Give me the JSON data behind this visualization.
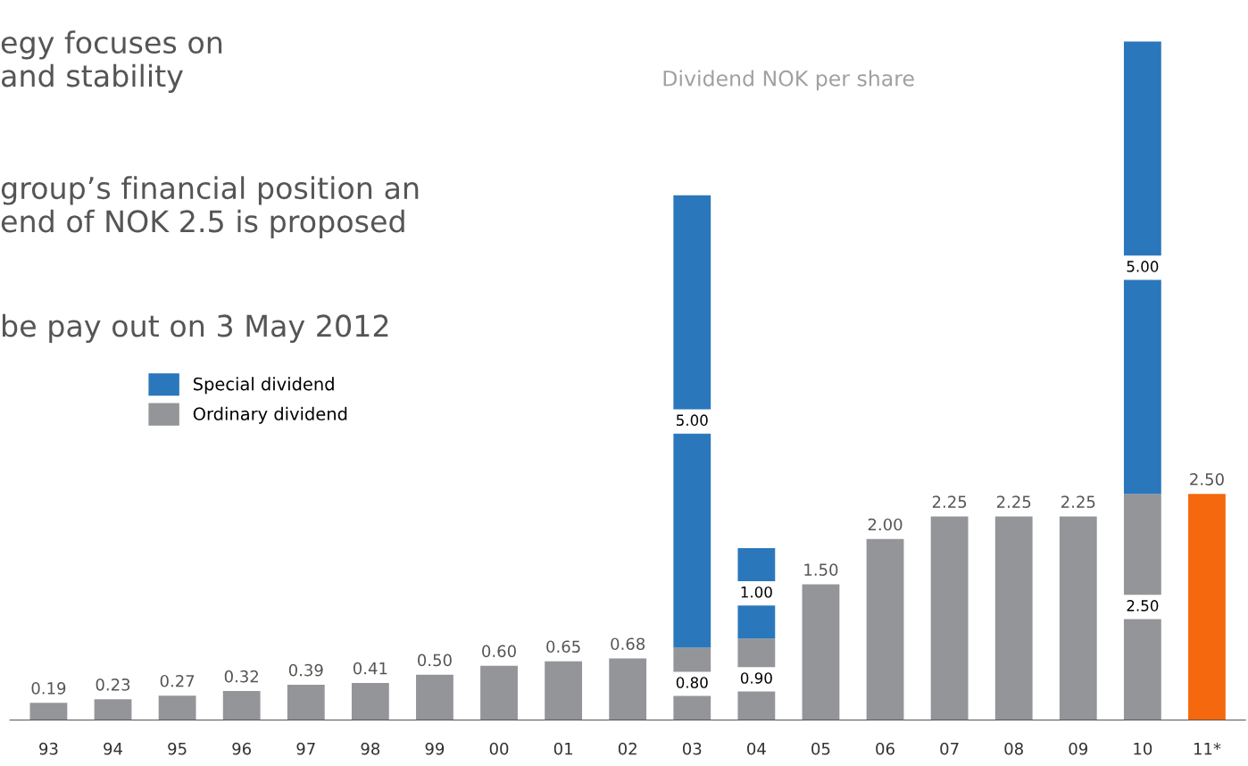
{
  "chart_data": {
    "type": "bar",
    "title": "Dividend NOK per share",
    "categories": [
      "93",
      "94",
      "95",
      "96",
      "97",
      "98",
      "99",
      "00",
      "01",
      "02",
      "03",
      "04",
      "05",
      "06",
      "07",
      "08",
      "09",
      "10",
      "11*"
    ],
    "stacked": true,
    "legend": "left",
    "grid": false,
    "series": [
      {
        "name": "Ordinary dividend",
        "color": "#939598",
        "colors": [
          "#939598",
          "#939598",
          "#939598",
          "#939598",
          "#939598",
          "#939598",
          "#939598",
          "#939598",
          "#939598",
          "#939598",
          "#939598",
          "#939598",
          "#939598",
          "#939598",
          "#939598",
          "#939598",
          "#939598",
          "#939598",
          "#f5680d"
        ],
        "values": [
          0.19,
          0.23,
          0.27,
          0.32,
          0.39,
          0.41,
          0.5,
          0.6,
          0.65,
          0.68,
          0.8,
          0.9,
          1.5,
          2.0,
          2.25,
          2.25,
          2.25,
          2.5,
          2.5
        ],
        "value_labels": [
          "0.19",
          "0.23",
          "0.27",
          "0.32",
          "0.39",
          "0.41",
          "0.50",
          "0.60",
          "0.65",
          "0.68",
          "0.80",
          "0.90",
          "1.50",
          "2.00",
          "2.25",
          "2.25",
          "2.25",
          "2.50",
          "2.50"
        ]
      },
      {
        "name": "Special dividend",
        "color": "#2b77bb",
        "values": [
          null,
          null,
          null,
          null,
          null,
          null,
          null,
          null,
          null,
          null,
          5.0,
          1.0,
          null,
          null,
          null,
          null,
          null,
          5.0,
          null
        ],
        "value_labels": [
          null,
          null,
          null,
          null,
          null,
          null,
          null,
          null,
          null,
          null,
          "5.00",
          "1.00",
          null,
          null,
          null,
          null,
          null,
          "5.00",
          null
        ]
      }
    ],
    "annotations": [
      "egy focuses on\nand stability",
      "group’s financial position an\nend of NOK 2.5 is proposed",
      "be pay out on 3 May 2012"
    ]
  }
}
